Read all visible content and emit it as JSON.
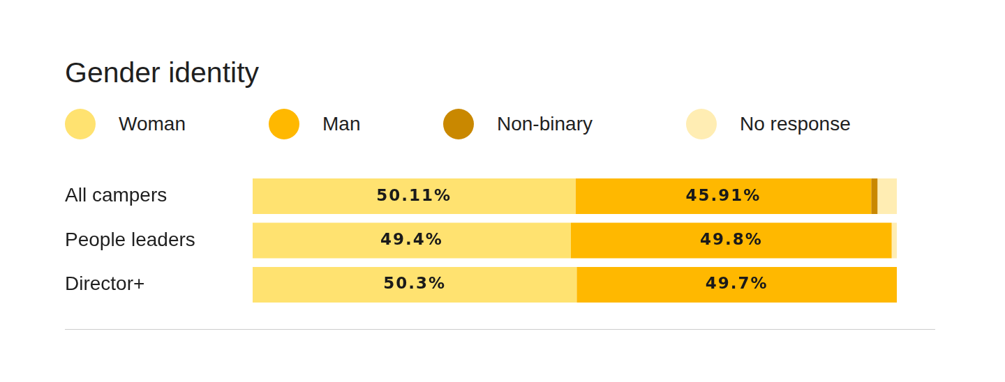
{
  "chart_data": {
    "type": "bar",
    "title": "Gender identity",
    "orientation": "horizontal",
    "stacked": true,
    "grid": false,
    "legend": "top",
    "tick_labels": "y",
    "categories": [
      "All campers",
      "People leaders",
      "Director+"
    ],
    "xlim": [
      0,
      100
    ],
    "series": [
      {
        "name": "Woman",
        "color": "#FFE270",
        "values": [
          50.11,
          49.4,
          50.3
        ],
        "value_labels": [
          "50.11%",
          "49.4%",
          "50.3%"
        ]
      },
      {
        "name": "Man",
        "color": "#FFB800",
        "values": [
          45.91,
          49.8,
          49.7
        ],
        "value_labels": [
          "45.91%",
          "49.8%",
          "49.7%"
        ]
      },
      {
        "name": "Non-binary",
        "color": "#C98800",
        "values": [
          0.98,
          0,
          0
        ]
      },
      {
        "name": "No response",
        "color": "#FFEDB3",
        "values": [
          3.0,
          0.8,
          0
        ]
      }
    ]
  }
}
